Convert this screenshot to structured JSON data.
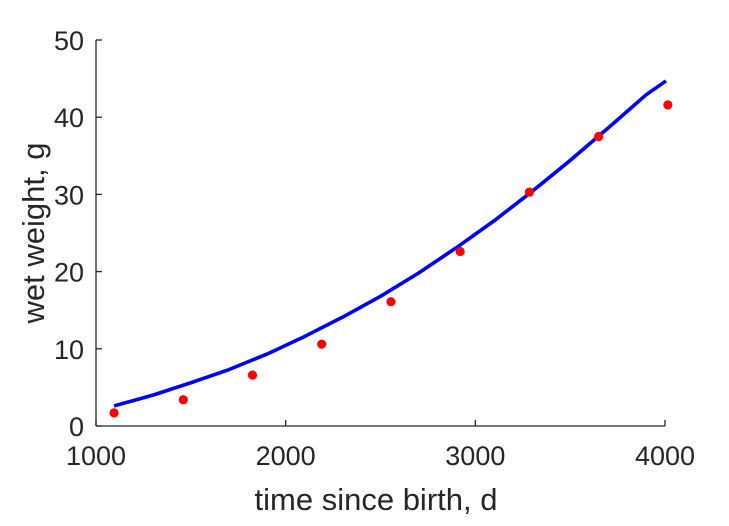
{
  "chart_data": {
    "type": "scatter",
    "title": "",
    "xlabel": "time since birth, d",
    "ylabel": "wet weight, g",
    "xlim": [
      1000,
      4000
    ],
    "ylim": [
      0,
      50
    ],
    "xticks": [
      1000,
      2000,
      3000,
      4000
    ],
    "yticks": [
      0,
      10,
      20,
      30,
      40,
      50
    ],
    "grid": false,
    "legend": "none",
    "series": [
      {
        "kind": "points",
        "color": "#ff0000",
        "x": [
          1095,
          1460,
          1825,
          2190,
          2555,
          2920,
          3285,
          3650,
          4015
        ],
        "y": [
          1.7,
          3.4,
          6.6,
          10.6,
          16.1,
          22.6,
          30.3,
          37.5,
          41.6
        ]
      },
      {
        "kind": "line",
        "color": "#0000ff",
        "x": [
          1095,
          1300,
          1500,
          1700,
          1900,
          2100,
          2300,
          2500,
          2700,
          2900,
          3100,
          3300,
          3500,
          3700,
          3900,
          4005
        ],
        "y": [
          2.6,
          4.0,
          5.6,
          7.3,
          9.3,
          11.6,
          14.1,
          16.8,
          19.8,
          23.1,
          26.6,
          30.4,
          34.4,
          38.6,
          42.9,
          44.7
        ]
      }
    ]
  }
}
